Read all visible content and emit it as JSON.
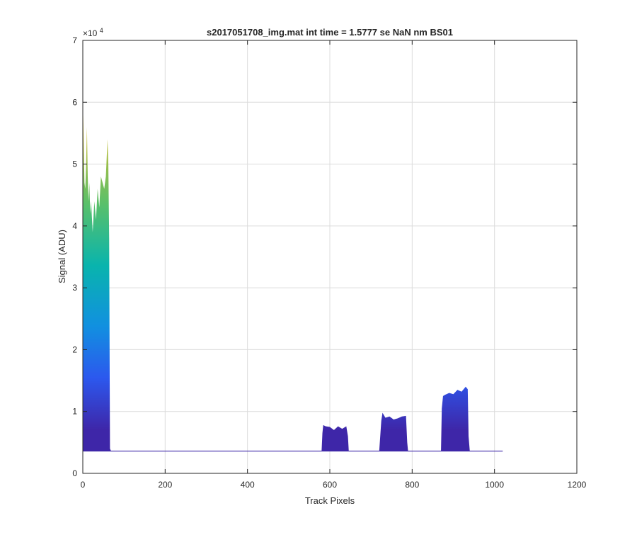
{
  "chart_data": {
    "type": "area",
    "title": "s2017051708_img.mat int time = 1.5777 se  NaN nm BS01",
    "xlabel": "Track Pixels",
    "ylabel": "Signal (ADU)",
    "y_multiplier_label": "×10",
    "y_multiplier_exponent": "4",
    "xlim": [
      0,
      1200
    ],
    "ylim": [
      0,
      70000
    ],
    "xticks": [
      0,
      200,
      400,
      600,
      800,
      1000,
      1200
    ],
    "yticks": [
      0,
      10000,
      20000,
      30000,
      40000,
      50000,
      60000,
      70000
    ],
    "xtick_labels": [
      "0",
      "200",
      "400",
      "600",
      "800",
      "1000",
      "1200"
    ],
    "ytick_labels": [
      "0",
      "1",
      "2",
      "3",
      "4",
      "5",
      "6",
      "7"
    ],
    "grid": true,
    "baseline": 3600,
    "colormap": [
      "#3e26a8",
      "#2c58ee",
      "#1190e0",
      "#09b4ad",
      "#58c06b",
      "#c6bd34",
      "#f9c72f"
    ],
    "x": [
      0,
      2,
      4,
      6,
      8,
      10,
      12,
      14,
      16,
      18,
      20,
      24,
      28,
      32,
      36,
      40,
      44,
      48,
      52,
      56,
      60,
      62,
      64,
      66,
      68,
      70,
      100,
      200,
      300,
      400,
      500,
      580,
      582,
      584,
      590,
      600,
      610,
      620,
      630,
      640,
      644,
      646,
      650,
      700,
      720,
      725,
      728,
      735,
      745,
      755,
      765,
      775,
      785,
      788,
      790,
      800,
      860,
      870,
      872,
      875,
      880,
      890,
      900,
      910,
      920,
      930,
      935,
      937,
      940,
      960,
      1000,
      1020
    ],
    "y": [
      61000,
      54000,
      47000,
      46000,
      50000,
      56000,
      48000,
      44000,
      47000,
      42000,
      44000,
      39000,
      44000,
      41000,
      46000,
      43000,
      48000,
      47000,
      46000,
      48000,
      54000,
      50000,
      38000,
      4000,
      3700,
      3600,
      3600,
      3600,
      3600,
      3600,
      3600,
      3600,
      6500,
      7800,
      7600,
      7500,
      7000,
      7600,
      7200,
      7600,
      6000,
      3600,
      3600,
      3600,
      3600,
      8500,
      9800,
      9000,
      9200,
      8700,
      8900,
      9200,
      9300,
      5000,
      3600,
      3600,
      3600,
      3600,
      10500,
      12500,
      12700,
      13000,
      12800,
      13500,
      13200,
      14000,
      13600,
      6000,
      3600,
      3600,
      3600,
      3600
    ]
  }
}
